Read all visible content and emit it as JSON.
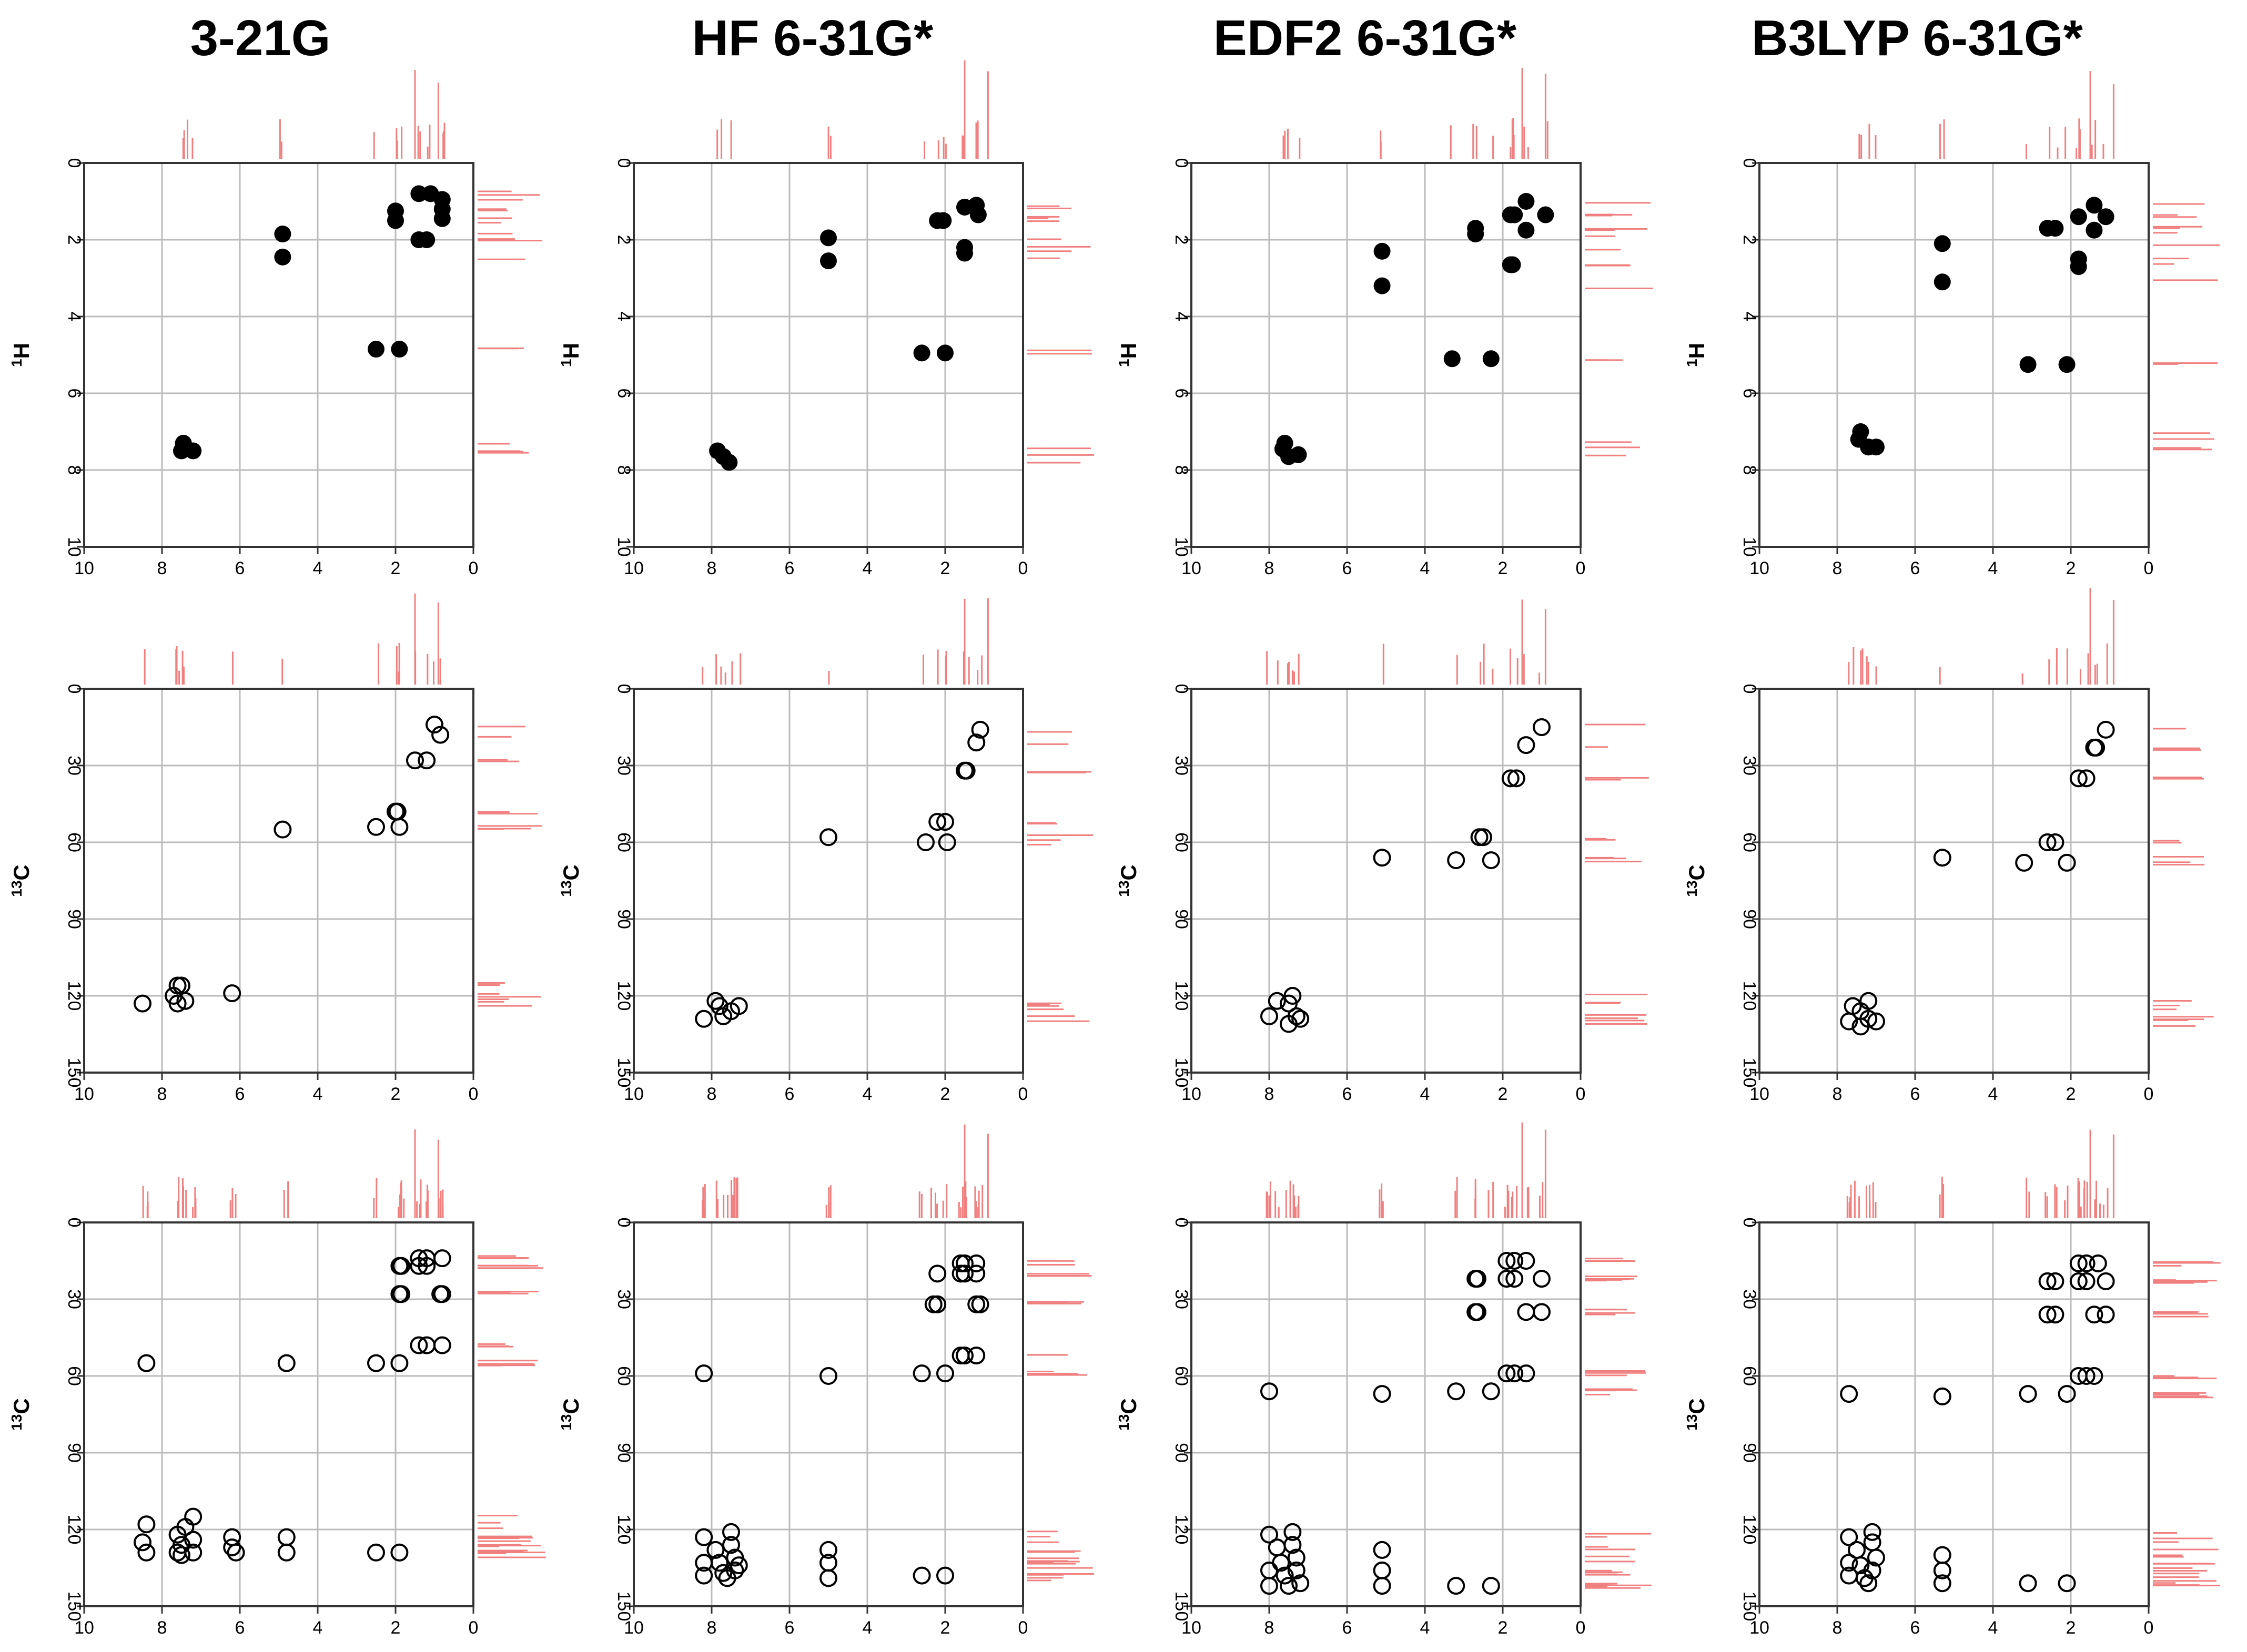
{
  "column_titles": [
    "3-21G",
    "HF 6-31G*",
    "EDF2 6-31G*",
    "B3LYP 6-31G*"
  ],
  "colors": {
    "frame": "#333333",
    "grid": "#bbbbbb",
    "marker": "#000000",
    "marginal": "#f08080"
  },
  "chart_data": [
    {
      "id": "r1c1",
      "type": "scatter",
      "marker": "filled",
      "xlim": [
        10,
        0
      ],
      "ylim": [
        0,
        10
      ],
      "xticks": [
        10,
        8,
        6,
        4,
        2,
        0
      ],
      "yticks": [
        0,
        2,
        4,
        6,
        8,
        10
      ],
      "ylabel": "1H",
      "points": [
        [
          4.9,
          1.85
        ],
        [
          4.9,
          2.45
        ],
        [
          1.4,
          0.8
        ],
        [
          1.1,
          0.8
        ],
        [
          0.8,
          0.95
        ],
        [
          2.0,
          1.25
        ],
        [
          2.0,
          1.5
        ],
        [
          1.4,
          2.0
        ],
        [
          1.2,
          2.0
        ],
        [
          0.8,
          1.2
        ],
        [
          0.8,
          1.45
        ],
        [
          2.5,
          4.85
        ],
        [
          1.9,
          4.85
        ],
        [
          7.45,
          7.3
        ],
        [
          7.4,
          7.45
        ],
        [
          7.2,
          7.5
        ],
        [
          7.5,
          7.5
        ]
      ]
    },
    {
      "id": "r1c2",
      "type": "scatter",
      "marker": "filled",
      "xlim": [
        10,
        0
      ],
      "ylim": [
        0,
        10
      ],
      "xticks": [
        10,
        8,
        6,
        4,
        2,
        0
      ],
      "yticks": [
        0,
        2,
        4,
        6,
        8,
        10
      ],
      "ylabel": "1H",
      "points": [
        [
          5.0,
          1.95
        ],
        [
          5.0,
          2.55
        ],
        [
          2.2,
          1.5
        ],
        [
          2.05,
          1.5
        ],
        [
          1.5,
          1.15
        ],
        [
          1.2,
          1.1
        ],
        [
          1.15,
          1.35
        ],
        [
          1.5,
          2.2
        ],
        [
          1.5,
          2.35
        ],
        [
          2.6,
          4.95
        ],
        [
          2.0,
          4.95
        ],
        [
          7.85,
          7.5
        ],
        [
          7.7,
          7.65
        ],
        [
          7.55,
          7.8
        ]
      ]
    },
    {
      "id": "r1c3",
      "type": "scatter",
      "marker": "filled",
      "xlim": [
        10,
        0
      ],
      "ylim": [
        0,
        10
      ],
      "xticks": [
        10,
        8,
        6,
        4,
        2,
        0
      ],
      "yticks": [
        0,
        2,
        4,
        6,
        8,
        10
      ],
      "ylabel": "1H",
      "points": [
        [
          5.1,
          2.3
        ],
        [
          5.1,
          3.2
        ],
        [
          2.7,
          1.7
        ],
        [
          2.7,
          1.85
        ],
        [
          1.8,
          1.35
        ],
        [
          1.7,
          1.35
        ],
        [
          1.4,
          1.0
        ],
        [
          1.4,
          1.75
        ],
        [
          0.9,
          1.35
        ],
        [
          1.8,
          2.65
        ],
        [
          1.75,
          2.65
        ],
        [
          3.3,
          5.1
        ],
        [
          2.3,
          5.1
        ],
        [
          7.6,
          7.3
        ],
        [
          7.65,
          7.45
        ],
        [
          7.5,
          7.65
        ],
        [
          7.25,
          7.6
        ]
      ]
    },
    {
      "id": "r1c4",
      "type": "scatter",
      "marker": "filled",
      "xlim": [
        10,
        0
      ],
      "ylim": [
        0,
        10
      ],
      "xticks": [
        10,
        8,
        6,
        4,
        2,
        0
      ],
      "yticks": [
        0,
        2,
        4,
        6,
        8,
        10
      ],
      "ylabel": "1H",
      "points": [
        [
          5.3,
          2.1
        ],
        [
          5.3,
          3.1
        ],
        [
          2.6,
          1.7
        ],
        [
          2.4,
          1.7
        ],
        [
          1.8,
          1.4
        ],
        [
          1.4,
          1.1
        ],
        [
          1.1,
          1.4
        ],
        [
          1.4,
          1.75
        ],
        [
          1.8,
          2.5
        ],
        [
          1.8,
          2.7
        ],
        [
          3.1,
          5.25
        ],
        [
          2.1,
          5.25
        ],
        [
          7.4,
          7.0
        ],
        [
          7.45,
          7.2
        ],
        [
          7.2,
          7.4
        ],
        [
          7.0,
          7.4
        ]
      ]
    },
    {
      "id": "r2c1",
      "type": "scatter",
      "marker": "open",
      "xlim": [
        10,
        0
      ],
      "ylim": [
        0,
        150
      ],
      "xticks": [
        10,
        8,
        6,
        4,
        2,
        0
      ],
      "yticks": [
        0,
        30,
        60,
        90,
        120,
        150
      ],
      "ylabel": "13C",
      "points": [
        [
          1.0,
          14
        ],
        [
          0.85,
          18
        ],
        [
          1.5,
          28
        ],
        [
          1.2,
          28
        ],
        [
          2.0,
          48
        ],
        [
          1.95,
          48
        ],
        [
          4.9,
          55
        ],
        [
          2.5,
          54
        ],
        [
          1.9,
          54
        ],
        [
          7.6,
          116
        ],
        [
          7.5,
          116
        ],
        [
          7.7,
          120
        ],
        [
          7.4,
          122
        ],
        [
          7.6,
          123
        ],
        [
          8.5,
          123
        ],
        [
          6.2,
          119
        ]
      ]
    },
    {
      "id": "r2c2",
      "type": "scatter",
      "marker": "open",
      "xlim": [
        10,
        0
      ],
      "ylim": [
        0,
        150
      ],
      "xticks": [
        10,
        8,
        6,
        4,
        2,
        0
      ],
      "yticks": [
        0,
        30,
        60,
        90,
        120,
        150
      ],
      "ylabel": "13C",
      "points": [
        [
          1.1,
          16
        ],
        [
          1.2,
          21
        ],
        [
          1.5,
          32
        ],
        [
          1.45,
          32
        ],
        [
          2.2,
          52
        ],
        [
          2.0,
          52
        ],
        [
          5.0,
          58
        ],
        [
          2.5,
          60
        ],
        [
          1.95,
          60
        ],
        [
          8.2,
          129
        ],
        [
          7.9,
          122
        ],
        [
          7.8,
          124
        ],
        [
          7.7,
          128
        ],
        [
          7.5,
          126
        ],
        [
          7.3,
          124
        ]
      ]
    },
    {
      "id": "r2c3",
      "type": "scatter",
      "marker": "open",
      "xlim": [
        10,
        0
      ],
      "ylim": [
        0,
        150
      ],
      "xticks": [
        10,
        8,
        6,
        4,
        2,
        0
      ],
      "yticks": [
        0,
        30,
        60,
        90,
        120,
        150
      ],
      "ylabel": "13C",
      "points": [
        [
          1.0,
          15
        ],
        [
          1.4,
          22
        ],
        [
          1.8,
          35
        ],
        [
          1.65,
          35
        ],
        [
          2.6,
          58
        ],
        [
          2.5,
          58
        ],
        [
          5.1,
          66
        ],
        [
          3.2,
          67
        ],
        [
          2.3,
          67
        ],
        [
          8.0,
          128
        ],
        [
          7.8,
          122
        ],
        [
          7.5,
          123
        ],
        [
          7.4,
          120
        ],
        [
          7.3,
          128
        ],
        [
          7.5,
          131
        ],
        [
          7.2,
          129
        ]
      ]
    },
    {
      "id": "r2c4",
      "type": "scatter",
      "marker": "open",
      "xlim": [
        10,
        0
      ],
      "ylim": [
        0,
        150
      ],
      "xticks": [
        10,
        8,
        6,
        4,
        2,
        0
      ],
      "yticks": [
        0,
        30,
        60,
        90,
        120,
        150
      ],
      "ylabel": "13C",
      "points": [
        [
          1.1,
          16
        ],
        [
          1.4,
          23
        ],
        [
          1.35,
          23
        ],
        [
          1.8,
          35
        ],
        [
          1.6,
          35
        ],
        [
          2.6,
          60
        ],
        [
          2.4,
          60
        ],
        [
          5.3,
          66
        ],
        [
          3.2,
          68
        ],
        [
          2.1,
          68
        ],
        [
          7.6,
          124
        ],
        [
          7.4,
          126
        ],
        [
          7.2,
          122
        ],
        [
          7.7,
          130
        ],
        [
          7.4,
          132
        ],
        [
          7.2,
          129
        ],
        [
          7.0,
          130
        ]
      ]
    },
    {
      "id": "r3c1",
      "type": "scatter",
      "marker": "open",
      "xlim": [
        10,
        0
      ],
      "ylim": [
        0,
        150
      ],
      "xticks": [
        10,
        8,
        6,
        4,
        2,
        0
      ],
      "yticks": [
        0,
        30,
        60,
        90,
        120,
        150
      ],
      "ylabel": "13C",
      "points": [
        [
          1.4,
          14
        ],
        [
          1.2,
          14
        ],
        [
          0.8,
          14
        ],
        [
          1.9,
          17
        ],
        [
          1.85,
          17
        ],
        [
          1.4,
          17
        ],
        [
          1.2,
          17
        ],
        [
          1.9,
          28
        ],
        [
          1.85,
          28
        ],
        [
          0.85,
          28
        ],
        [
          0.8,
          28
        ],
        [
          1.4,
          48
        ],
        [
          1.2,
          48
        ],
        [
          0.8,
          48
        ],
        [
          8.4,
          55
        ],
        [
          4.8,
          55
        ],
        [
          2.5,
          55
        ],
        [
          1.9,
          55
        ],
        [
          8.4,
          118
        ],
        [
          8.5,
          125
        ],
        [
          8.4,
          129
        ],
        [
          7.6,
          122
        ],
        [
          7.5,
          126
        ],
        [
          7.6,
          129
        ],
        [
          7.4,
          119
        ],
        [
          7.2,
          115
        ],
        [
          7.2,
          124
        ],
        [
          7.2,
          129
        ],
        [
          7.5,
          130
        ],
        [
          6.2,
          123
        ],
        [
          6.2,
          127
        ],
        [
          6.1,
          129
        ],
        [
          4.8,
          123
        ],
        [
          4.8,
          129
        ],
        [
          2.5,
          129
        ],
        [
          1.9,
          129
        ]
      ]
    },
    {
      "id": "r3c2",
      "type": "scatter",
      "marker": "open",
      "xlim": [
        10,
        0
      ],
      "ylim": [
        0,
        150
      ],
      "xticks": [
        10,
        8,
        6,
        4,
        2,
        0
      ],
      "yticks": [
        0,
        30,
        60,
        90,
        120,
        150
      ],
      "ylabel": "13C",
      "points": [
        [
          1.6,
          16
        ],
        [
          1.5,
          16
        ],
        [
          1.2,
          16
        ],
        [
          2.2,
          20
        ],
        [
          1.6,
          20
        ],
        [
          1.5,
          20
        ],
        [
          1.2,
          20
        ],
        [
          2.3,
          32
        ],
        [
          2.2,
          32
        ],
        [
          1.2,
          32
        ],
        [
          1.1,
          32
        ],
        [
          1.6,
          52
        ],
        [
          1.5,
          52
        ],
        [
          1.2,
          52
        ],
        [
          8.2,
          59
        ],
        [
          5.0,
          60
        ],
        [
          2.6,
          59
        ],
        [
          2.0,
          59
        ],
        [
          8.2,
          123
        ],
        [
          8.2,
          133
        ],
        [
          8.2,
          138
        ],
        [
          7.9,
          128
        ],
        [
          7.8,
          133
        ],
        [
          7.7,
          137
        ],
        [
          7.6,
          139
        ],
        [
          7.5,
          121
        ],
        [
          7.5,
          126
        ],
        [
          7.4,
          131
        ],
        [
          7.4,
          136
        ],
        [
          7.3,
          134
        ],
        [
          5.0,
          128
        ],
        [
          5.0,
          133
        ],
        [
          5.0,
          139
        ],
        [
          2.6,
          138
        ],
        [
          2.0,
          138
        ]
      ]
    },
    {
      "id": "r3c3",
      "type": "scatter",
      "marker": "open",
      "xlim": [
        10,
        0
      ],
      "ylim": [
        0,
        150
      ],
      "xticks": [
        10,
        8,
        6,
        4,
        2,
        0
      ],
      "yticks": [
        0,
        30,
        60,
        90,
        120,
        150
      ],
      "ylabel": "13C",
      "points": [
        [
          1.9,
          15
        ],
        [
          1.7,
          15
        ],
        [
          1.4,
          15
        ],
        [
          2.7,
          22
        ],
        [
          2.65,
          22
        ],
        [
          1.9,
          22
        ],
        [
          1.7,
          22
        ],
        [
          1.0,
          22
        ],
        [
          2.7,
          35
        ],
        [
          2.65,
          35
        ],
        [
          1.4,
          35
        ],
        [
          1.0,
          35
        ],
        [
          1.9,
          59
        ],
        [
          1.7,
          59
        ],
        [
          1.4,
          59
        ],
        [
          8.0,
          66
        ],
        [
          5.1,
          67
        ],
        [
          3.2,
          66
        ],
        [
          2.3,
          66
        ],
        [
          8.0,
          122
        ],
        [
          8.0,
          136
        ],
        [
          8.0,
          142
        ],
        [
          7.8,
          127
        ],
        [
          7.7,
          133
        ],
        [
          7.6,
          138
        ],
        [
          7.5,
          142
        ],
        [
          7.4,
          121
        ],
        [
          7.4,
          126
        ],
        [
          7.3,
          131
        ],
        [
          7.3,
          136
        ],
        [
          7.2,
          141
        ],
        [
          5.1,
          128
        ],
        [
          5.1,
          136
        ],
        [
          5.1,
          142
        ],
        [
          3.2,
          142
        ],
        [
          2.3,
          142
        ]
      ]
    },
    {
      "id": "r3c4",
      "type": "scatter",
      "marker": "open",
      "xlim": [
        10,
        0
      ],
      "ylim": [
        0,
        150
      ],
      "xticks": [
        10,
        8,
        6,
        4,
        2,
        0
      ],
      "yticks": [
        0,
        30,
        60,
        90,
        120,
        150
      ],
      "ylabel": "13C",
      "points": [
        [
          1.8,
          16
        ],
        [
          1.6,
          16
        ],
        [
          1.3,
          16
        ],
        [
          2.6,
          23
        ],
        [
          2.4,
          23
        ],
        [
          1.8,
          23
        ],
        [
          1.6,
          23
        ],
        [
          1.1,
          23
        ],
        [
          2.6,
          36
        ],
        [
          2.4,
          36
        ],
        [
          1.4,
          36
        ],
        [
          1.1,
          36
        ],
        [
          1.8,
          60
        ],
        [
          1.6,
          60
        ],
        [
          1.4,
          60
        ],
        [
          7.7,
          67
        ],
        [
          5.3,
          68
        ],
        [
          3.1,
          67
        ],
        [
          2.1,
          67
        ],
        [
          7.7,
          123
        ],
        [
          7.7,
          133
        ],
        [
          7.7,
          138
        ],
        [
          7.5,
          128
        ],
        [
          7.4,
          134
        ],
        [
          7.3,
          139
        ],
        [
          7.2,
          141
        ],
        [
          7.1,
          121
        ],
        [
          7.1,
          125
        ],
        [
          7.0,
          131
        ],
        [
          7.1,
          136
        ],
        [
          5.3,
          130
        ],
        [
          5.3,
          136
        ],
        [
          5.3,
          141
        ],
        [
          3.1,
          141
        ],
        [
          2.1,
          141
        ]
      ]
    }
  ]
}
